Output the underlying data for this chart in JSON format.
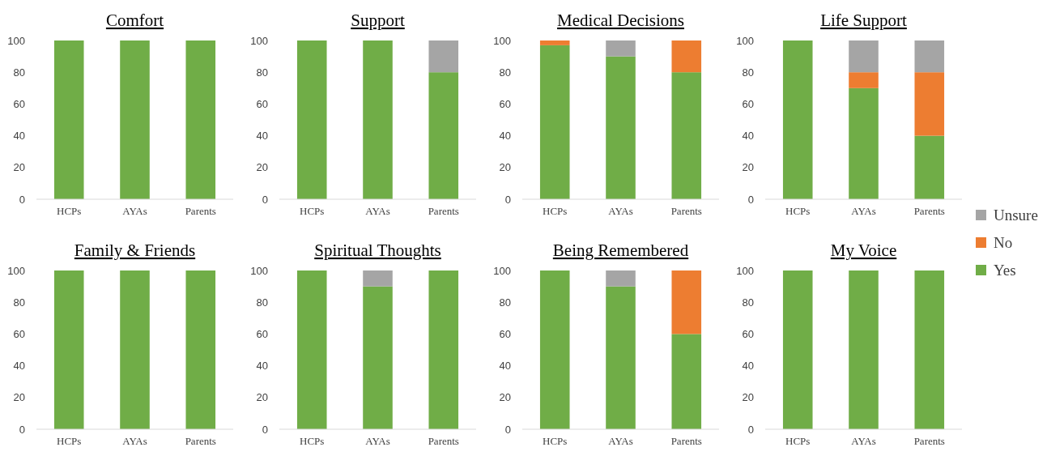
{
  "chart_data": [
    {
      "type": "bar",
      "title": "Comfort",
      "stacked": true,
      "categories": [
        "HCPs",
        "AYAs",
        "Parents"
      ],
      "ylim": [
        0,
        100
      ],
      "yticks": [
        0,
        20,
        40,
        60,
        80,
        100
      ],
      "series": [
        {
          "color": "#70ad47",
          "values": [
            100,
            100,
            100
          ]
        },
        {
          "color": "#ed7d31",
          "values": [
            0,
            0,
            0
          ]
        },
        {
          "color": "#a5a5a5",
          "values": [
            0,
            0,
            0
          ]
        }
      ]
    },
    {
      "type": "bar",
      "title": "Support",
      "stacked": true,
      "categories": [
        "HCPs",
        "AYAs",
        "Parents"
      ],
      "ylim": [
        0,
        100
      ],
      "yticks": [
        0,
        20,
        40,
        60,
        80,
        100
      ],
      "series": [
        {
          "color": "#70ad47",
          "values": [
            100,
            100,
            80
          ]
        },
        {
          "color": "#ed7d31",
          "values": [
            0,
            0,
            0
          ]
        },
        {
          "color": "#a5a5a5",
          "values": [
            0,
            0,
            20
          ]
        }
      ]
    },
    {
      "type": "bar",
      "title": "Medical Decisions",
      "stacked": true,
      "categories": [
        "HCPs",
        "AYAs",
        "Parents"
      ],
      "ylim": [
        0,
        100
      ],
      "yticks": [
        0,
        20,
        40,
        60,
        80,
        100
      ],
      "series": [
        {
          "color": "#70ad47",
          "values": [
            97,
            90,
            80
          ]
        },
        {
          "color": "#ed7d31",
          "values": [
            3,
            0,
            20
          ]
        },
        {
          "color": "#a5a5a5",
          "values": [
            0,
            10,
            0
          ]
        }
      ]
    },
    {
      "type": "bar",
      "title": "Life Support",
      "stacked": true,
      "legend": "right",
      "categories": [
        "HCPs",
        "AYAs",
        "Parents"
      ],
      "ylim": [
        0,
        100
      ],
      "yticks": [
        0,
        20,
        40,
        60,
        80,
        100
      ],
      "series": [
        {
          "name": "Yes",
          "color": "#70ad47",
          "values": [
            100,
            70,
            40
          ]
        },
        {
          "name": "No",
          "color": "#ed7d31",
          "values": [
            0,
            10,
            40
          ]
        },
        {
          "name": "Unsure",
          "color": "#a5a5a5",
          "values": [
            0,
            20,
            20
          ]
        }
      ]
    },
    {
      "type": "bar",
      "title": "Family & Friends",
      "stacked": true,
      "categories": [
        "HCPs",
        "AYAs",
        "Parents"
      ],
      "ylim": [
        0,
        100
      ],
      "yticks": [
        0,
        20,
        40,
        60,
        80,
        100
      ],
      "series": [
        {
          "color": "#70ad47",
          "values": [
            100,
            100,
            100
          ]
        },
        {
          "color": "#ed7d31",
          "values": [
            0,
            0,
            0
          ]
        },
        {
          "color": "#a5a5a5",
          "values": [
            0,
            0,
            0
          ]
        }
      ]
    },
    {
      "type": "bar",
      "title": "Spiritual Thoughts",
      "stacked": true,
      "categories": [
        "HCPs",
        "AYAs",
        "Parents"
      ],
      "ylim": [
        0,
        100
      ],
      "yticks": [
        0,
        20,
        40,
        60,
        80,
        100
      ],
      "series": [
        {
          "color": "#70ad47",
          "values": [
            100,
            90,
            100
          ]
        },
        {
          "color": "#ed7d31",
          "values": [
            0,
            0,
            0
          ]
        },
        {
          "color": "#a5a5a5",
          "values": [
            0,
            10,
            0
          ]
        }
      ]
    },
    {
      "type": "bar",
      "title": "Being Remembered",
      "stacked": true,
      "categories": [
        "HCPs",
        "AYAs",
        "Parents"
      ],
      "ylim": [
        0,
        100
      ],
      "yticks": [
        0,
        20,
        40,
        60,
        80,
        100
      ],
      "series": [
        {
          "color": "#70ad47",
          "values": [
            100,
            90,
            60
          ]
        },
        {
          "color": "#ed7d31",
          "values": [
            0,
            0,
            40
          ]
        },
        {
          "color": "#a5a5a5",
          "values": [
            0,
            10,
            0
          ]
        }
      ]
    },
    {
      "type": "bar",
      "title": "My Voice",
      "stacked": true,
      "categories": [
        "HCPs",
        "AYAs",
        "Parents"
      ],
      "ylim": [
        0,
        100
      ],
      "yticks": [
        0,
        20,
        40,
        60,
        80,
        100
      ],
      "series": [
        {
          "color": "#70ad47",
          "values": [
            100,
            100,
            100
          ]
        },
        {
          "color": "#ed7d31",
          "values": [
            0,
            0,
            0
          ]
        },
        {
          "color": "#a5a5a5",
          "values": [
            0,
            0,
            0
          ]
        }
      ]
    }
  ]
}
